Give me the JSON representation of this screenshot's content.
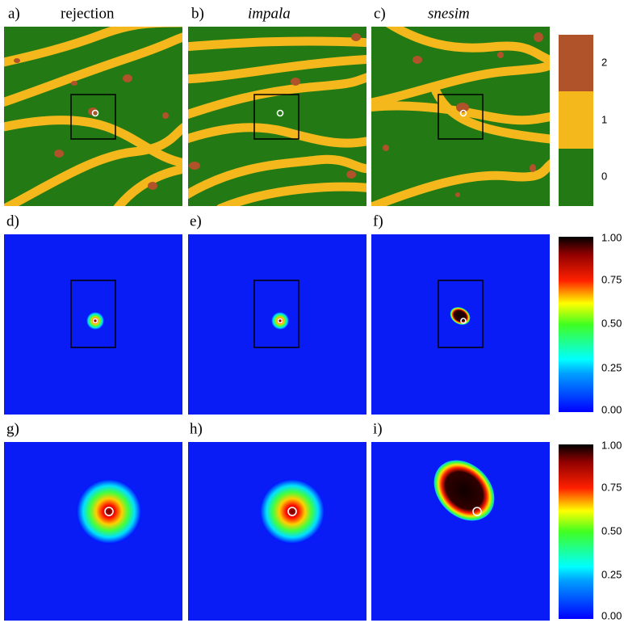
{
  "panels": [
    {
      "label": "a)",
      "title": "rejection"
    },
    {
      "label": "b)",
      "title": "impala"
    },
    {
      "label": "c)",
      "title": "snesim"
    },
    {
      "label": "d)"
    },
    {
      "label": "e)"
    },
    {
      "label": "f)"
    },
    {
      "label": "g)"
    },
    {
      "label": "h)"
    },
    {
      "label": "i)"
    }
  ],
  "colorbars": [
    {
      "ticks": [
        "2",
        "1",
        "0"
      ]
    },
    {
      "ticks": [
        "1.00",
        "0.75",
        "0.50",
        "0.25",
        "0.00"
      ]
    },
    {
      "ticks": [
        "1.00",
        "0.75",
        "0.50",
        "0.25",
        "0.00"
      ]
    }
  ]
}
